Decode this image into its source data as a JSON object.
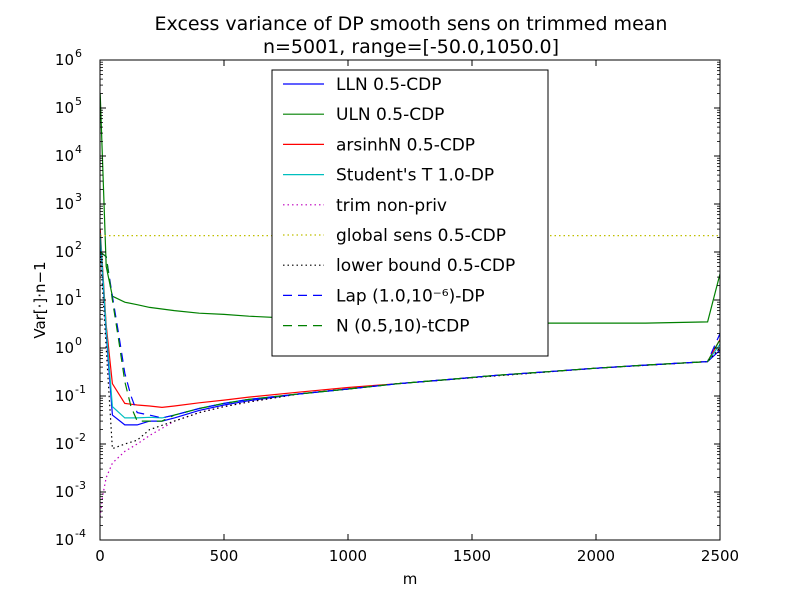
{
  "chart_data": {
    "type": "line",
    "title": "Excess variance of DP smooth sens on trimmed mean",
    "subtitle": "n=5001, range=[-50.0,1050.0]",
    "xlabel": "m",
    "ylabel": "Var[·]·n−1",
    "xlim": [
      0,
      2500
    ],
    "ylim": [
      0.0001,
      1000000
    ],
    "yscale": "log",
    "x_ticks": [
      "0",
      "500",
      "1000",
      "1500",
      "2000",
      "2500"
    ],
    "y_ticks": [
      {
        "base": "10",
        "exp": "-4"
      },
      {
        "base": "10",
        "exp": "-3"
      },
      {
        "base": "10",
        "exp": "-2"
      },
      {
        "base": "10",
        "exp": "-1"
      },
      {
        "base": "10",
        "exp": "0"
      },
      {
        "base": "10",
        "exp": "1"
      },
      {
        "base": "10",
        "exp": "2"
      },
      {
        "base": "10",
        "exp": "3"
      },
      {
        "base": "10",
        "exp": "4"
      },
      {
        "base": "10",
        "exp": "5"
      },
      {
        "base": "10",
        "exp": "6"
      }
    ],
    "grid": false,
    "legend_position": "top-center",
    "series": [
      {
        "name": "LLN 0.5-CDP",
        "color": "#0000ff",
        "style": "solid",
        "x": [
          1,
          25,
          50,
          100,
          150,
          200,
          250,
          300,
          400,
          500,
          600,
          800,
          1000,
          1200,
          1400,
          1600,
          1800,
          2000,
          2200,
          2450,
          2500
        ],
        "y": [
          200,
          2,
          0.04,
          0.025,
          0.025,
          0.03,
          0.03,
          0.035,
          0.05,
          0.065,
          0.08,
          0.11,
          0.14,
          0.18,
          0.22,
          0.27,
          0.32,
          0.38,
          0.44,
          0.52,
          0.9
        ]
      },
      {
        "name": "ULN 0.5-CDP",
        "color": "#008000",
        "style": "solid",
        "x": [
          1,
          25,
          50,
          100,
          150,
          200,
          300,
          400,
          500,
          600,
          800,
          1000,
          1200,
          1500,
          1800,
          2000,
          2200,
          2450,
          2500
        ],
        "y": [
          200000,
          50,
          12,
          9,
          8,
          7,
          6,
          5.3,
          5,
          4.6,
          4.1,
          3.8,
          3.6,
          3.4,
          3.3,
          3.3,
          3.3,
          3.5,
          35
        ]
      },
      {
        "name": "arsinhN 0.5-CDP",
        "color": "#ff0000",
        "style": "solid",
        "x": [
          1,
          25,
          50,
          100,
          150,
          200,
          250,
          300,
          400,
          500,
          600,
          800,
          1000,
          1200,
          1400,
          1600,
          1800,
          2000,
          2200,
          2450,
          2500
        ],
        "y": [
          300,
          3,
          0.18,
          0.07,
          0.065,
          0.062,
          0.058,
          0.062,
          0.072,
          0.082,
          0.095,
          0.12,
          0.15,
          0.18,
          0.22,
          0.27,
          0.32,
          0.38,
          0.44,
          0.52,
          1.5
        ]
      },
      {
        "name": "Student's T 1.0-DP",
        "color": "#00bfbf",
        "style": "solid",
        "x": [
          1,
          25,
          50,
          100,
          150,
          200,
          250,
          300,
          400,
          500,
          600,
          800,
          1000,
          1200,
          1400,
          1600,
          1800,
          2000,
          2200,
          2450,
          2500
        ],
        "y": [
          250,
          2.5,
          0.06,
          0.035,
          0.035,
          0.036,
          0.035,
          0.04,
          0.055,
          0.07,
          0.085,
          0.11,
          0.14,
          0.18,
          0.22,
          0.27,
          0.32,
          0.38,
          0.44,
          0.52,
          1.2
        ]
      },
      {
        "name": "trim non-priv",
        "color": "#bf00bf",
        "style": "dotted",
        "x": [
          1,
          10,
          25,
          50,
          100,
          150,
          200,
          300,
          400,
          500,
          600,
          800,
          1000,
          1200,
          1500,
          2000,
          2450,
          2500
        ],
        "y": [
          0.0003,
          0.0008,
          0.002,
          0.004,
          0.007,
          0.01,
          0.015,
          0.03,
          0.045,
          0.06,
          0.075,
          0.11,
          0.14,
          0.18,
          0.24,
          0.38,
          0.52,
          1.0
        ]
      },
      {
        "name": "global sens 0.5-CDP",
        "color": "#bfbf00",
        "style": "dotted",
        "x": [
          0,
          2500
        ],
        "y": [
          220,
          220
        ]
      },
      {
        "name": "lower bound 0.5-CDP",
        "color": "#000000",
        "style": "dotted",
        "x": [
          1,
          25,
          50,
          100,
          150,
          200,
          300,
          400,
          500,
          600,
          800,
          1000,
          1200,
          1500,
          2000,
          2450,
          2500
        ],
        "y": [
          100,
          1,
          0.008,
          0.01,
          0.012,
          0.02,
          0.03,
          0.045,
          0.06,
          0.075,
          0.11,
          0.14,
          0.18,
          0.24,
          0.38,
          0.52,
          1.0
        ]
      },
      {
        "name": "Lap (1.0,10⁻⁶)-DP",
        "color": "#0000ff",
        "style": "dashed",
        "x": [
          1,
          25,
          50,
          75,
          100,
          125,
          150,
          200,
          250,
          300,
          400,
          500,
          600,
          800,
          1000,
          1200,
          1400,
          1600,
          1800,
          2000,
          2200,
          2450,
          2500
        ],
        "y": [
          100,
          80,
          12,
          2,
          0.3,
          0.1,
          0.045,
          0.04,
          0.035,
          0.04,
          0.055,
          0.07,
          0.085,
          0.11,
          0.14,
          0.18,
          0.22,
          0.27,
          0.32,
          0.38,
          0.44,
          0.52,
          2.0
        ]
      },
      {
        "name": "N (0.5,10)-tCDP",
        "color": "#008000",
        "style": "dashed",
        "x": [
          1,
          25,
          50,
          75,
          100,
          125,
          150,
          200,
          250,
          300,
          400,
          500,
          600,
          800,
          1000,
          1200,
          1400,
          1600,
          1800,
          2000,
          2200,
          2450,
          2500
        ],
        "y": [
          100,
          80,
          10,
          1.5,
          0.2,
          0.06,
          0.03,
          0.03,
          0.03,
          0.04,
          0.055,
          0.07,
          0.085,
          0.11,
          0.14,
          0.18,
          0.22,
          0.27,
          0.32,
          0.38,
          0.44,
          0.52,
          1.5
        ]
      }
    ]
  }
}
